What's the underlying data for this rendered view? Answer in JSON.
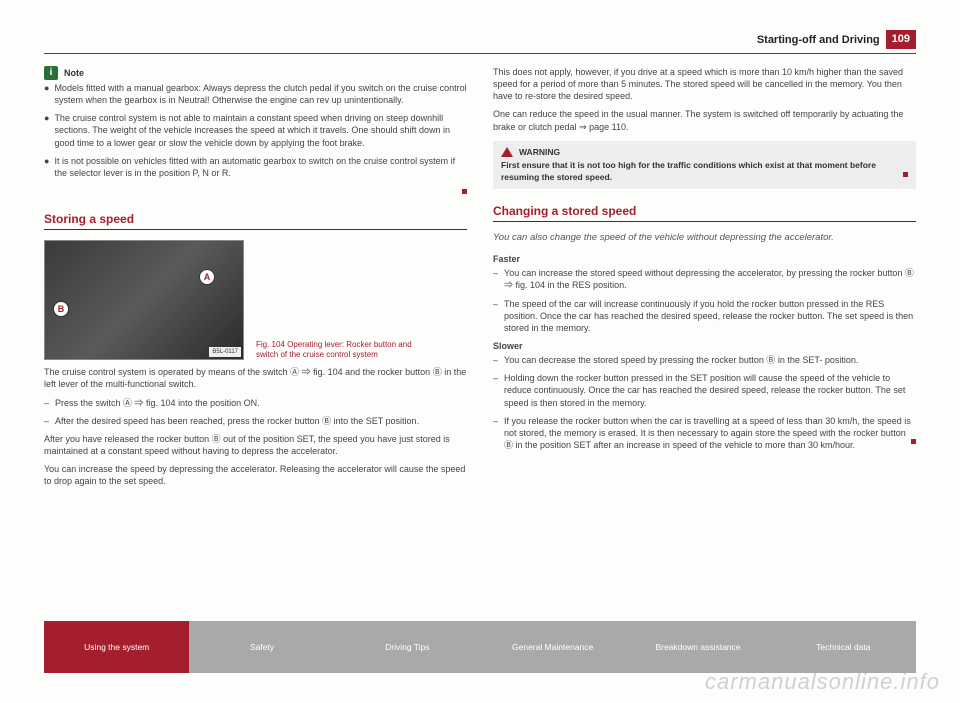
{
  "header": {
    "section_title": "Starting-off and Driving",
    "page_number": "109"
  },
  "left_column": {
    "note_label": "Note",
    "note_bullets": [
      "Models fitted with a manual gearbox: Always depress the clutch pedal if you switch on the cruise control system when the gearbox is in Neutral! Otherwise the engine can rev up unintentionally.",
      "The cruise control system is not able to maintain a constant speed when driving on steep downhill sections. The weight of the vehicle increases the speed at which it travels. One should shift down in good time to a lower gear or slow the vehicle down by applying the foot brake.",
      "It is not possible on vehicles fitted with an automatic gearbox to switch on the cruise control system if the selector lever is in the position P, N or R."
    ],
    "section1_title": "Storing a speed",
    "fig": {
      "label_a": "A",
      "label_b": "B",
      "code": "B5L-0117",
      "caption": "Fig. 104  Operating lever: Rocker button and switch of the cruise control system"
    },
    "intro": "The cruise control system is operated by means of the switch Ⓐ ⇒ fig. 104 and the rocker button Ⓑ in the left lever of the multi-functional switch.",
    "steps": [
      "Press the switch Ⓐ ⇒ fig. 104 into the position ON.",
      "After the desired speed has been reached, press the rocker button Ⓑ into the SET position."
    ],
    "after1": "After you have released the rocker button Ⓑ out of the position SET, the speed you have just stored is maintained at a constant speed without having to depress the accelerator.",
    "after2": "You can increase the speed by depressing the accelerator. Releasing the accelerator will cause the speed to drop again to the set speed."
  },
  "right_column": {
    "intro1": "This does not apply, however, if you drive at a speed which is more than 10 km/h higher than the saved speed for a period of more than 5 minutes. The stored speed will be cancelled in the memory. You then have to re-store the desired speed.",
    "intro2": "One can reduce the speed in the usual manner. The system is switched off temporarily by actuating the brake or clutch pedal ⇒ page 110.",
    "warning_label": "WARNING",
    "warning_text": "First ensure that it is not too high for the traffic conditions which exist at that moment before resuming the stored speed.",
    "section2_title": "Changing a stored speed",
    "section2_sub": "You can also change the speed of the vehicle without depressing the accelerator.",
    "faster_label": "Faster",
    "faster_items": [
      "You can increase the stored speed without depressing the accelerator, by pressing the rocker button Ⓑ ⇒ fig. 104 in the RES position.",
      "The speed of the car will increase continuously if you hold the rocker button pressed in the RES position. Once the car has reached the desired speed, release the rocker button. The set speed is then stored in the memory."
    ],
    "slower_label": "Slower",
    "slower_items": [
      "You can decrease the stored speed by pressing the rocker button Ⓑ in the SET- position.",
      "Holding down the rocker button pressed in the SET position will cause the speed of the vehicle to reduce continuously. Once the car has reached the desired speed, release the rocker button. The set speed is then stored in the memory.",
      "If you release the rocker button when the car is travelling at a speed of less than 30 km/h, the speed is not stored, the memory is erased. It is then necessary to again store the speed with the rocker button Ⓑ in the position SET after an increase in speed of the vehicle to more than 30 km/hour."
    ]
  },
  "footer": {
    "tabs": [
      "Using the system",
      "Safety",
      "Driving Tips",
      "General Maintenance",
      "Breakdown assistance",
      "Technical data"
    ]
  },
  "watermark": "carmanualsonline.info",
  "colors": {
    "accent": "#a51e2d",
    "dim": "#a9a9a9",
    "bg": "#fdfdfc",
    "note_green": "#2a6f3b"
  }
}
